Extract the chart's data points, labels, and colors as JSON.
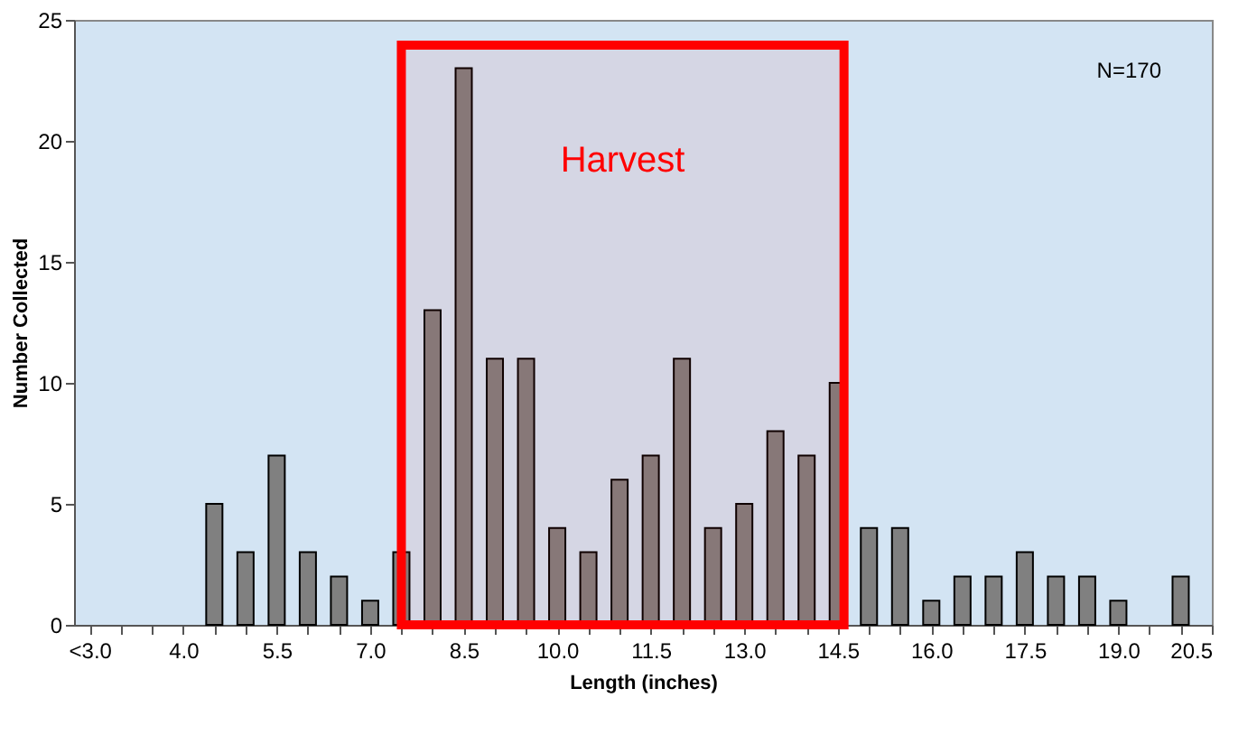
{
  "chart_data": {
    "type": "bar",
    "xlabel": "Length (inches)",
    "ylabel": "Number Collected",
    "x": [
      4.5,
      5.0,
      5.5,
      6.0,
      6.5,
      7.0,
      7.5,
      8.0,
      8.5,
      9.0,
      9.5,
      10.0,
      10.5,
      11.0,
      11.5,
      12.0,
      12.5,
      13.0,
      13.5,
      14.0,
      14.5,
      15.0,
      15.5,
      16.0,
      16.5,
      17.0,
      17.5,
      18.0,
      18.5,
      19.0,
      19.5,
      20.0
    ],
    "values": [
      5,
      3,
      7,
      3,
      2,
      1,
      3,
      13,
      23,
      11,
      11,
      4,
      3,
      6,
      7,
      11,
      4,
      5,
      8,
      7,
      10,
      4,
      4,
      1,
      2,
      2,
      3,
      2,
      2,
      1,
      null,
      2
    ],
    "color": "#808080",
    "xlim": [
      2.25,
      20.5
    ],
    "xticks": [
      {
        "value": 2.5,
        "label": "<3.0"
      },
      {
        "value": 3.0,
        "label": null
      },
      {
        "value": 3.5,
        "label": null
      },
      {
        "value": 4.0,
        "label": "4.0"
      },
      {
        "value": 4.5,
        "label": null
      },
      {
        "value": 5.0,
        "label": null
      },
      {
        "value": 5.5,
        "label": "5.5"
      },
      {
        "value": 6.0,
        "label": null
      },
      {
        "value": 6.5,
        "label": null
      },
      {
        "value": 7.0,
        "label": "7.0"
      },
      {
        "value": 7.5,
        "label": null
      },
      {
        "value": 8.0,
        "label": null
      },
      {
        "value": 8.5,
        "label": "8.5"
      },
      {
        "value": 9.0,
        "label": null
      },
      {
        "value": 9.5,
        "label": null
      },
      {
        "value": 10.0,
        "label": "10.0"
      },
      {
        "value": 10.5,
        "label": null
      },
      {
        "value": 11.0,
        "label": null
      },
      {
        "value": 11.5,
        "label": "11.5"
      },
      {
        "value": 12.0,
        "label": null
      },
      {
        "value": 12.5,
        "label": null
      },
      {
        "value": 13.0,
        "label": "13.0"
      },
      {
        "value": 13.5,
        "label": null
      },
      {
        "value": 14.0,
        "label": null
      },
      {
        "value": 14.5,
        "label": "14.5"
      },
      {
        "value": 15.0,
        "label": null
      },
      {
        "value": 15.5,
        "label": null
      },
      {
        "value": 16.0,
        "label": "16.0"
      },
      {
        "value": 16.5,
        "label": null
      },
      {
        "value": 17.0,
        "label": null
      },
      {
        "value": 17.5,
        "label": "17.5"
      },
      {
        "value": 18.0,
        "label": null
      },
      {
        "value": 18.5,
        "label": null
      },
      {
        "value": 19.0,
        "label": "19.0"
      },
      {
        "value": 19.5,
        "label": null
      },
      {
        "value": 20.0,
        "label": null
      },
      {
        "value": 20.5,
        "label": "20.5"
      }
    ],
    "ylim": [
      0,
      25
    ],
    "yticks": [
      0,
      5,
      10,
      15,
      20,
      25
    ],
    "grid": false,
    "bands": [
      {
        "axis": "x",
        "from": 7.5,
        "to": 14.6,
        "label": "Harvest",
        "color": "#ff0000"
      }
    ],
    "annotations": [
      "N=170"
    ]
  }
}
